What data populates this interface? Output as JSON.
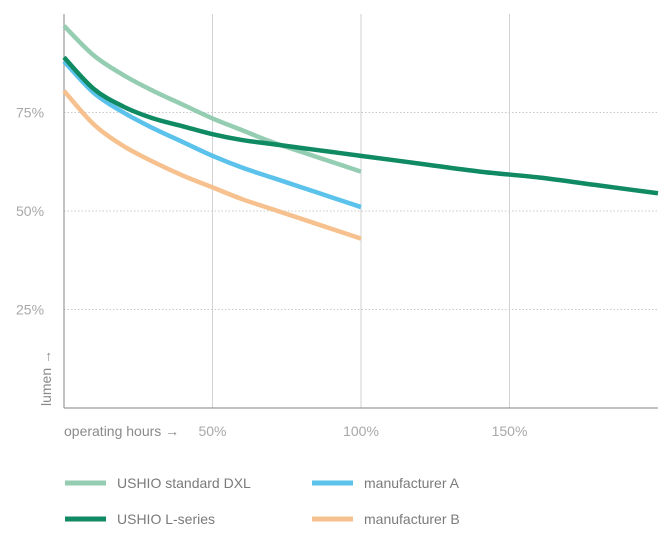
{
  "chart_data": {
    "type": "line",
    "xlabel": "operating hours →",
    "ylabel": "lumen →",
    "xlim": [
      0,
      200
    ],
    "ylim": [
      0,
      100
    ],
    "x_ticks": [
      {
        "value": 50,
        "label": "50%"
      },
      {
        "value": 100,
        "label": "100%"
      },
      {
        "value": 150,
        "label": "150%"
      }
    ],
    "y_ticks": [
      {
        "value": 25,
        "label": "25%"
      },
      {
        "value": 50,
        "label": "50%"
      },
      {
        "value": 75,
        "label": "75%"
      }
    ],
    "grid": {
      "x": true,
      "y": true,
      "style": "x solid, y dotted"
    },
    "legend_position": "bottom",
    "series": [
      {
        "name": "USHIO standard DXL",
        "color": "#94cdb2",
        "x": [
          0,
          10,
          20,
          30,
          40,
          50,
          60,
          70,
          80,
          90,
          100
        ],
        "y": [
          97,
          89.5,
          84.5,
          80.5,
          77,
          73.5,
          70.5,
          67.5,
          65,
          62.5,
          60
        ]
      },
      {
        "name": "manufacturer A",
        "color": "#5bc2ec",
        "x": [
          0,
          10,
          20,
          30,
          40,
          50,
          60,
          70,
          80,
          90,
          100
        ],
        "y": [
          88,
          80,
          75,
          71,
          67.5,
          64,
          61,
          58.5,
          56,
          53.5,
          51
        ]
      },
      {
        "name": "USHIO L-series",
        "color": "#108a63",
        "x": [
          0,
          10,
          20,
          30,
          40,
          50,
          60,
          70,
          80,
          90,
          100,
          120,
          140,
          160,
          180,
          200
        ],
        "y": [
          89,
          81,
          76.5,
          73.5,
          71.5,
          69.5,
          68,
          67,
          66,
          65,
          64,
          62,
          60,
          58.5,
          56.5,
          54.5
        ]
      },
      {
        "name": "manufacturer B",
        "color": "#f6c18e",
        "x": [
          0,
          10,
          20,
          30,
          40,
          50,
          60,
          70,
          80,
          90,
          100
        ],
        "y": [
          80.5,
          72,
          66.5,
          62.5,
          59,
          56,
          53,
          50.5,
          48,
          45.5,
          43
        ]
      }
    ]
  }
}
